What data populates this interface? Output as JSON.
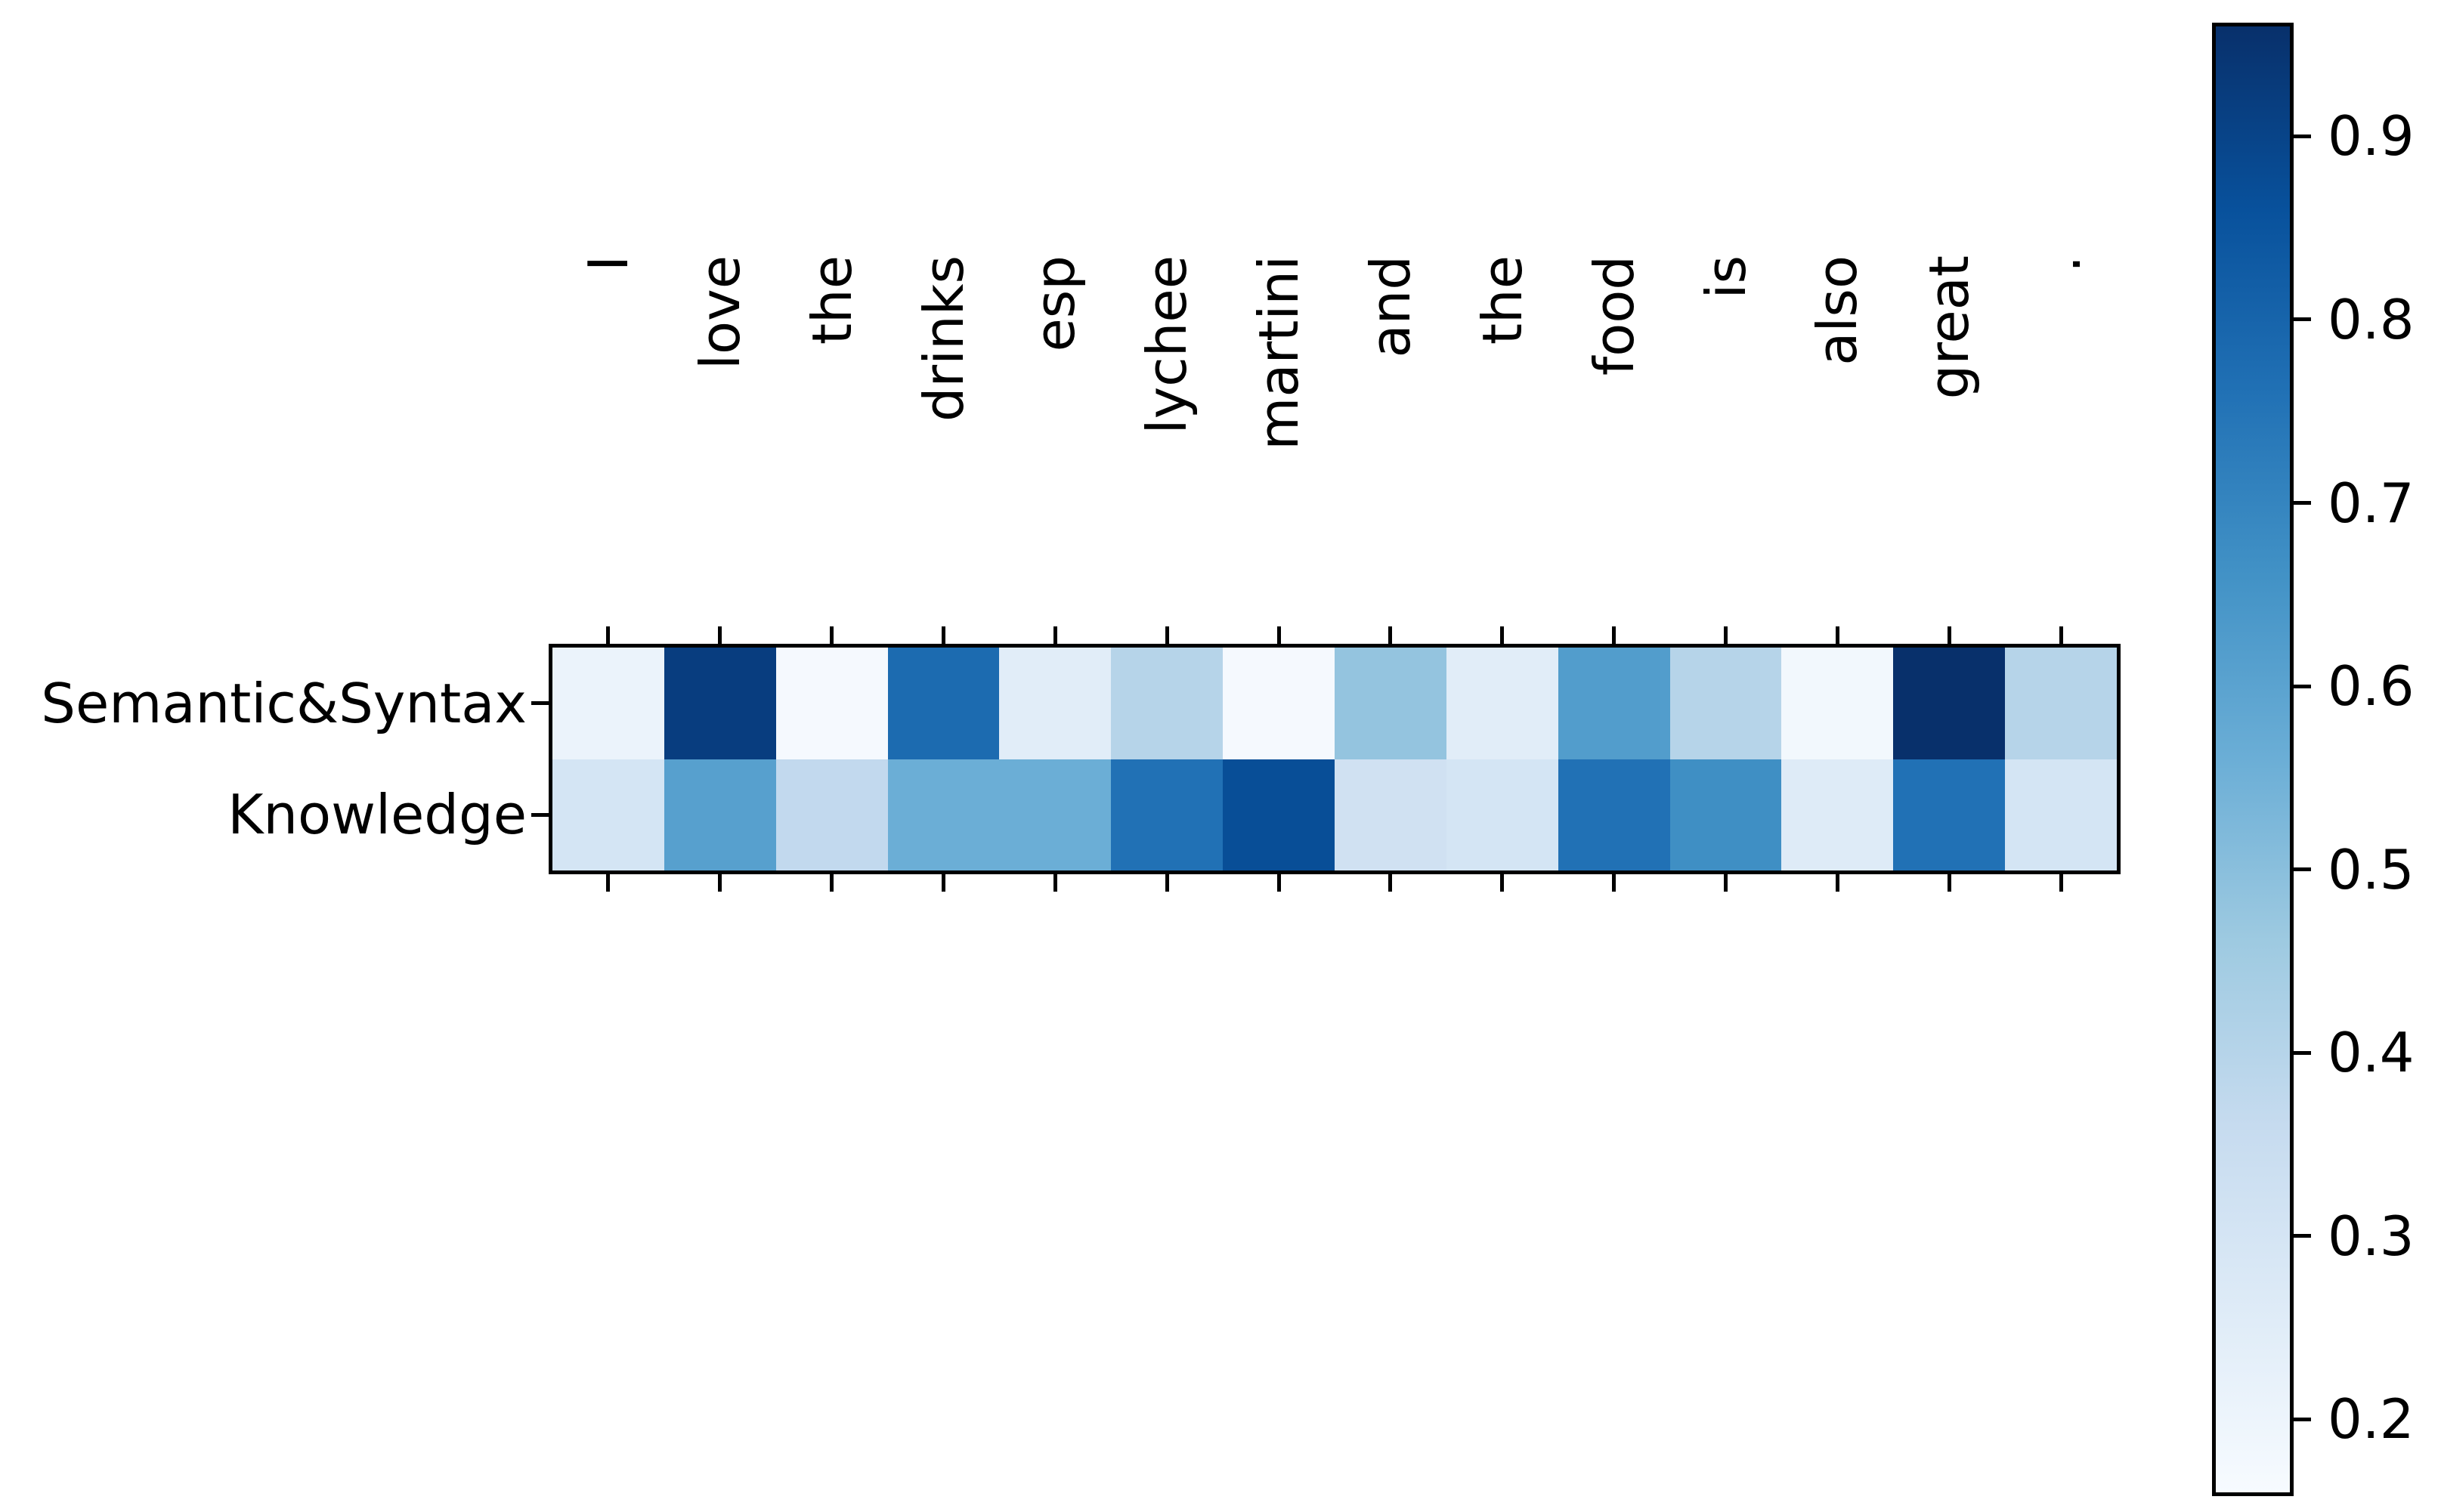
{
  "chart_data": {
    "type": "heatmap",
    "title": "",
    "xlabel": "",
    "ylabel": "",
    "x_tokens": [
      "I",
      "love",
      "the",
      "drinks",
      "esp",
      "lychee",
      "martini",
      "and",
      "the",
      "food",
      "is",
      "also",
      "great",
      "."
    ],
    "y_categories": [
      "Semantic&Syntax",
      "Knowledge"
    ],
    "series": [
      {
        "name": "Semantic&Syntax",
        "values": [
          0.21,
          0.92,
          0.17,
          0.78,
          0.25,
          0.4,
          0.17,
          0.48,
          0.25,
          0.62,
          0.4,
          0.18,
          0.96,
          0.4
        ]
      },
      {
        "name": "Knowledge",
        "values": [
          0.3,
          0.61,
          0.37,
          0.56,
          0.56,
          0.76,
          0.87,
          0.32,
          0.3,
          0.76,
          0.67,
          0.26,
          0.76,
          0.3
        ]
      }
    ],
    "color_scale": {
      "colormap": "Blues",
      "vmin": 0.16,
      "vmax": 0.96,
      "stops": [
        "#f7fbff",
        "#deebf7",
        "#c6dbef",
        "#9ecae1",
        "#6baed6",
        "#4292c6",
        "#2171b5",
        "#08519c",
        "#08306b"
      ],
      "colorbar_ticks": [
        0.9,
        0.8,
        0.7,
        0.6,
        0.5,
        0.4,
        0.3,
        0.2
      ]
    },
    "layout_hints": {
      "grid": "off",
      "legend": "none",
      "colorbar_position": "right",
      "x_tick_label_rotation_deg": 90,
      "axis_color": "#000000",
      "background": "#ffffff"
    }
  }
}
